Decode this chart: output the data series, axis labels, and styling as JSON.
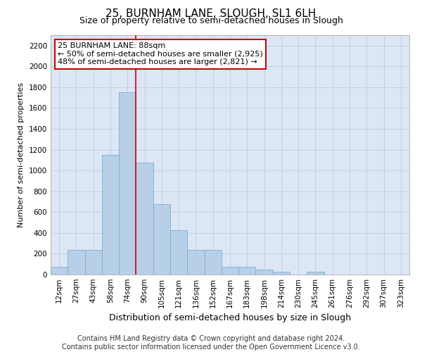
{
  "title": "25, BURNHAM LANE, SLOUGH, SL1 6LH",
  "subtitle": "Size of property relative to semi-detached houses in Slough",
  "xlabel": "Distribution of semi-detached houses by size in Slough",
  "ylabel": "Number of semi-detached properties",
  "categories": [
    "12sqm",
    "27sqm",
    "43sqm",
    "58sqm",
    "74sqm",
    "90sqm",
    "105sqm",
    "121sqm",
    "136sqm",
    "152sqm",
    "167sqm",
    "183sqm",
    "198sqm",
    "214sqm",
    "230sqm",
    "245sqm",
    "261sqm",
    "276sqm",
    "292sqm",
    "307sqm",
    "323sqm"
  ],
  "values": [
    75,
    240,
    240,
    1150,
    1750,
    1075,
    675,
    425,
    240,
    240,
    75,
    75,
    50,
    30,
    0,
    30,
    0,
    0,
    0,
    0,
    0
  ],
  "bar_color": "#b8cfe8",
  "bar_edge_color": "#7aafd4",
  "vline_color": "#cc0000",
  "vline_pos": 4.5,
  "annotation_text": "25 BURNHAM LANE: 88sqm\n← 50% of semi-detached houses are smaller (2,925)\n48% of semi-detached houses are larger (2,821) →",
  "annotation_box_color": "#ffffff",
  "annotation_box_edge": "#cc0000",
  "ylim": [
    0,
    2300
  ],
  "yticks": [
    0,
    200,
    400,
    600,
    800,
    1000,
    1200,
    1400,
    1600,
    1800,
    2000,
    2200
  ],
  "footer1": "Contains HM Land Registry data © Crown copyright and database right 2024.",
  "footer2": "Contains public sector information licensed under the Open Government Licence v3.0.",
  "bg_color": "#ffffff",
  "plot_bg_color": "#dce6f5",
  "grid_color": "#c0cce0",
  "title_fontsize": 11,
  "subtitle_fontsize": 9,
  "xlabel_fontsize": 9,
  "ylabel_fontsize": 8,
  "tick_fontsize": 7.5,
  "annotation_fontsize": 8,
  "footer_fontsize": 7
}
